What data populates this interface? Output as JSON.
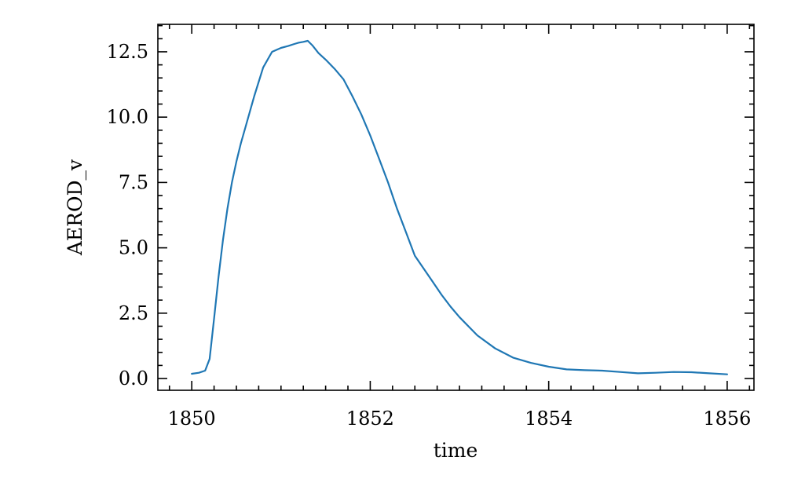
{
  "chart_data": {
    "type": "line",
    "title": "",
    "xlabel": "time",
    "ylabel": "AEROD_v",
    "xlim": [
      1849.62,
      1856.3
    ],
    "ylim": [
      -0.45,
      13.55
    ],
    "xticks": [
      1850,
      1852,
      1854,
      1856
    ],
    "xtick_labels": [
      "1850",
      "1852",
      "1854",
      "1856"
    ],
    "yticks": [
      0.0,
      2.5,
      5.0,
      7.5,
      10.0,
      12.5
    ],
    "ytick_labels": [
      "0.0",
      "2.5",
      "5.0",
      "7.5",
      "10.0",
      "12.5"
    ],
    "grid": false,
    "color": "#1f77b4",
    "series": [
      {
        "x": [
          1850.0,
          1850.08,
          1850.15,
          1850.2,
          1850.25,
          1850.3,
          1850.35,
          1850.4,
          1850.45,
          1850.5,
          1850.55,
          1850.6,
          1850.7,
          1850.8,
          1850.9,
          1851.0,
          1851.08,
          1851.15,
          1851.2,
          1851.25,
          1851.3,
          1851.35,
          1851.42,
          1851.5,
          1851.6,
          1851.7,
          1851.8,
          1851.9,
          1852.0,
          1852.1,
          1852.2,
          1852.3,
          1852.4,
          1852.5,
          1852.6,
          1852.7,
          1852.8,
          1852.9,
          1853.0,
          1853.2,
          1853.4,
          1853.6,
          1853.8,
          1854.0,
          1854.2,
          1854.4,
          1854.6,
          1854.8,
          1855.0,
          1855.2,
          1855.4,
          1855.6,
          1855.8,
          1856.0
        ],
        "y": [
          0.18,
          0.22,
          0.3,
          0.75,
          2.3,
          3.9,
          5.3,
          6.5,
          7.5,
          8.3,
          9.0,
          9.6,
          10.8,
          11.9,
          12.5,
          12.65,
          12.72,
          12.8,
          12.85,
          12.88,
          12.92,
          12.75,
          12.45,
          12.2,
          11.85,
          11.45,
          10.8,
          10.1,
          9.3,
          8.4,
          7.5,
          6.5,
          5.6,
          4.7,
          4.2,
          3.7,
          3.2,
          2.75,
          2.35,
          1.65,
          1.15,
          0.8,
          0.6,
          0.45,
          0.35,
          0.32,
          0.3,
          0.25,
          0.2,
          0.22,
          0.25,
          0.24,
          0.2,
          0.16
        ]
      }
    ]
  }
}
